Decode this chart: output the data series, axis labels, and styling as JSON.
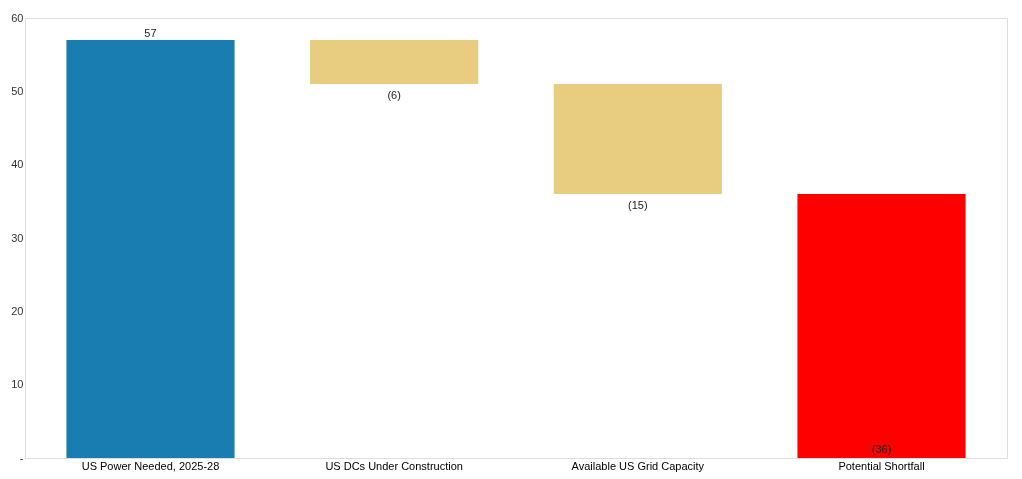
{
  "chart_data": {
    "type": "bar",
    "categories": [
      "US Power Needed, 2025-28",
      "US DCs Under Construction",
      "Available US Grid Capacity",
      "Potential Shortfall"
    ],
    "values": [
      57,
      -6,
      -15,
      -36
    ],
    "base": [
      0,
      57,
      51,
      36
    ],
    "colors": [
      "#1a7db1",
      "#e8cc80",
      "#e8cc80",
      "#ff0000"
    ],
    "value_labels": [
      "57",
      "(6)",
      "(15)",
      "(36)"
    ],
    "ylim": [
      0,
      60
    ],
    "yticks": [
      {
        "value": 0,
        "label": "-"
      },
      10,
      20,
      30,
      40,
      50,
      60
    ],
    "grid": false
  }
}
